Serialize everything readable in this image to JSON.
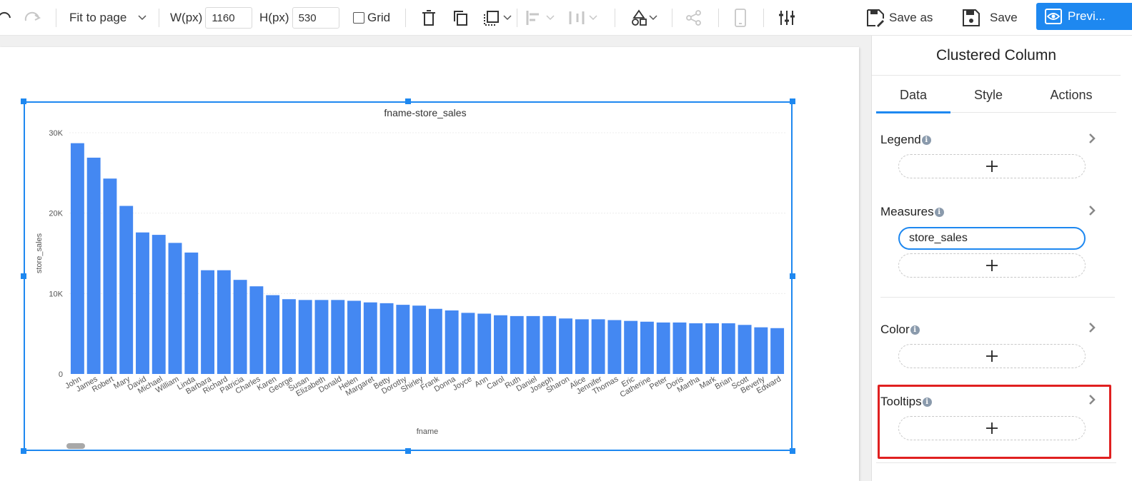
{
  "toolbar": {
    "zoom_label": "Fit to page",
    "width_label": "W(px)",
    "width_value": "1160",
    "height_label": "H(px)",
    "height_value": "530",
    "grid_label": "Grid",
    "save_as_label": "Save as",
    "save_label": "Save",
    "preview_label": "Previ..."
  },
  "panel": {
    "title": "Clustered Column",
    "tabs": [
      {
        "label": "Data",
        "active": true
      },
      {
        "label": "Style",
        "active": false
      },
      {
        "label": "Actions",
        "active": false
      }
    ],
    "sections": {
      "legend": "Legend",
      "measures": "Measures",
      "measure_field": "store_sales",
      "color": "Color",
      "tooltips": "Tooltips"
    }
  },
  "colors": {
    "accent": "#1e88f0",
    "bar": "#4488f2",
    "highlight": "#e02020"
  },
  "chart_data": {
    "type": "bar",
    "title": "fname-store_sales",
    "xlabel": "fname",
    "ylabel": "store_sales",
    "ylim": [
      0,
      30000
    ],
    "yticks": [
      {
        "value": 0,
        "label": "0"
      },
      {
        "value": 10000,
        "label": "10K"
      },
      {
        "value": 20000,
        "label": "20K"
      },
      {
        "value": 30000,
        "label": "30K"
      }
    ],
    "grid": true,
    "categories": [
      "John",
      "James",
      "Robert",
      "Mary",
      "David",
      "Michael",
      "William",
      "Linda",
      "Barbara",
      "Richard",
      "Patricia",
      "Charles",
      "Karen",
      "George",
      "Susan",
      "Elizabeth",
      "Donald",
      "Helen",
      "Margaret",
      "Betty",
      "Dorothy",
      "Shirley",
      "Frank",
      "Donna",
      "Joyce",
      "Ann",
      "Carol",
      "Ruth",
      "Daniel",
      "Joseph",
      "Sharon",
      "Alice",
      "Jennifer",
      "Thomas",
      "Eric",
      "Catherine",
      "Peter",
      "Doris",
      "Martha",
      "Mark",
      "Brian",
      "Scott",
      "Beverly",
      "Edward"
    ],
    "series": [
      {
        "values": [
          28700,
          26900,
          24300,
          20900,
          17600,
          17300,
          16300,
          15100,
          12900,
          12900,
          11700,
          10900,
          9800,
          9300,
          9200,
          9200,
          9200,
          9100,
          8900,
          8800,
          8600,
          8500,
          8100,
          7900,
          7600,
          7500,
          7300,
          7200,
          7200,
          7200,
          6900,
          6800,
          6800,
          6700,
          6600,
          6500,
          6400,
          6400,
          6300,
          6300,
          6300,
          6100,
          5800,
          5700
        ]
      }
    ]
  }
}
